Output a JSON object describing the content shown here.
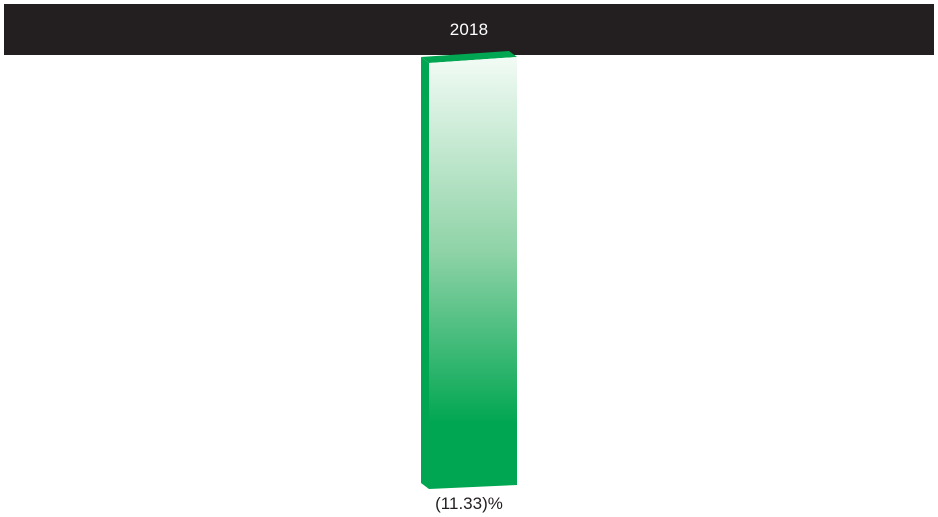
{
  "chart_data": {
    "type": "bar",
    "categories": [
      "2018"
    ],
    "series": [
      {
        "values": [
          -11.33
        ]
      }
    ],
    "data_labels": [
      "(11.33)%"
    ],
    "title": "",
    "xlabel": "",
    "ylabel": ""
  },
  "colors": {
    "bar": "#00a651",
    "bar_top": "#f2fbf5",
    "bar_side": "#00a651",
    "header": "#231f20",
    "header_text": "#ffffff",
    "label_text": "#231f20"
  }
}
